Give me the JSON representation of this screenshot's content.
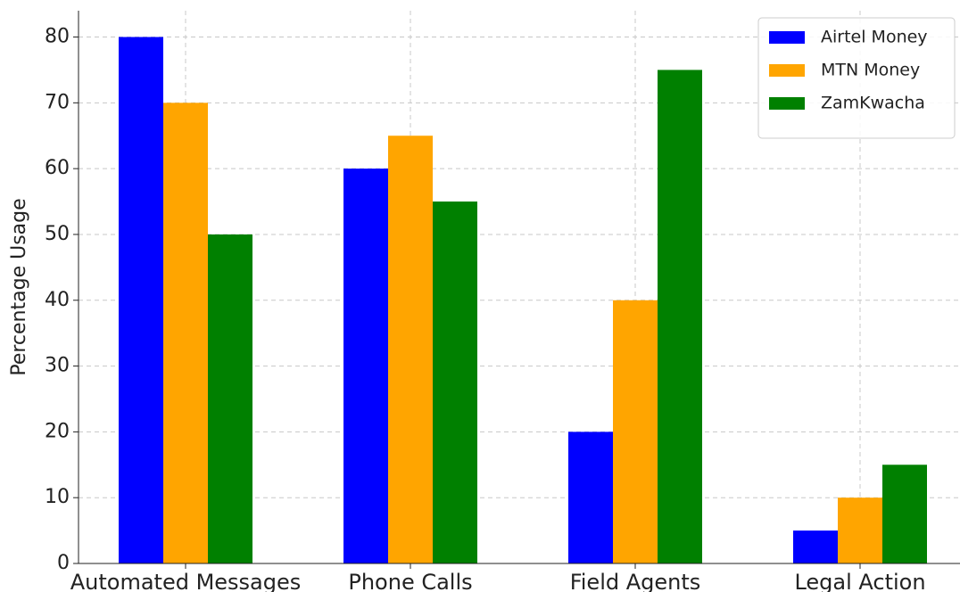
{
  "chart_data": {
    "type": "bar",
    "ylabel": "Percentage Usage",
    "categories": [
      "Automated Messages",
      "Phone Calls",
      "Field Agents",
      "Legal Action"
    ],
    "series": [
      {
        "name": "Airtel Money",
        "color": "#0000ff",
        "values": [
          80,
          60,
          20,
          5
        ]
      },
      {
        "name": "MTN Money",
        "color": "#ffa500",
        "values": [
          70,
          65,
          40,
          10
        ]
      },
      {
        "name": "ZamKwacha",
        "color": "#008000",
        "values": [
          50,
          55,
          75,
          15
        ]
      }
    ],
    "ylim": [
      0,
      84
    ],
    "yticks": [
      0,
      10,
      20,
      30,
      40,
      50,
      60,
      70,
      80
    ],
    "grid": true,
    "legend": "upper right"
  }
}
